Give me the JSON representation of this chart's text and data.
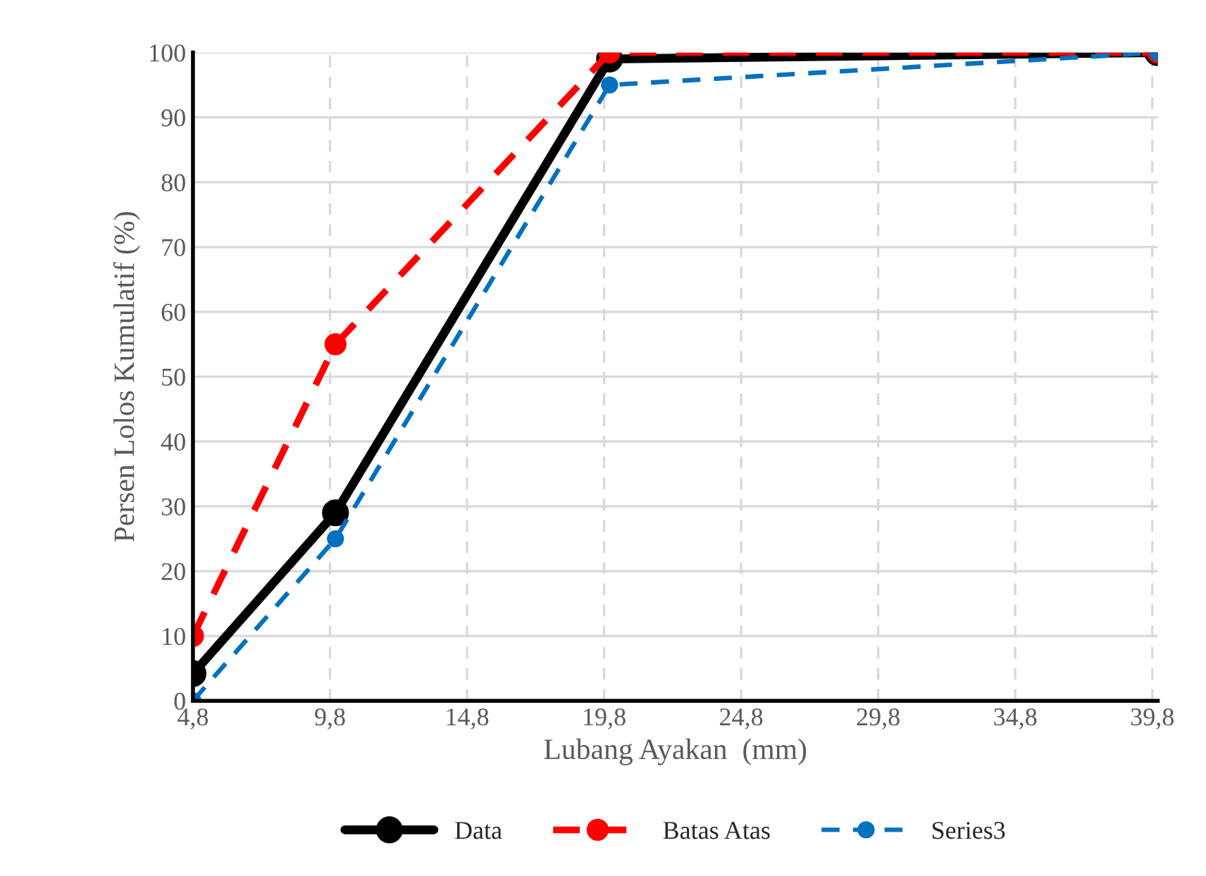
{
  "chart_data": {
    "type": "line",
    "xlabel": "Lubang Ayakan  (mm)",
    "ylabel": "Persen Lolos Kumulatif (%)",
    "x": [
      4.8,
      10,
      20,
      40
    ],
    "series": [
      {
        "name": "Data",
        "color": "#000000",
        "values": [
          4.2,
          29,
          99,
          100
        ],
        "line_style": "solid"
      },
      {
        "name": "Batas Atas",
        "color": "#ff0000",
        "values": [
          10,
          55,
          100,
          100
        ],
        "line_style": "dashed"
      },
      {
        "name": "Series3",
        "color": "#0070c0",
        "values": [
          0,
          25,
          95,
          100
        ],
        "line_style": "dashed"
      }
    ],
    "xlim": [
      4.8,
      40
    ],
    "xticks": [
      {
        "value": 4.8,
        "label": "4,8"
      },
      {
        "value": 9.8,
        "label": "9,8"
      },
      {
        "value": 14.8,
        "label": "14,8"
      },
      {
        "value": 19.8,
        "label": "19,8"
      },
      {
        "value": 24.8,
        "label": "24,8"
      },
      {
        "value": 29.8,
        "label": "29,8"
      },
      {
        "value": 34.8,
        "label": "34,8"
      },
      {
        "value": 39.8,
        "label": "39,8"
      }
    ],
    "ylim": [
      0,
      100
    ],
    "yticks": [
      0,
      10,
      20,
      30,
      40,
      50,
      60,
      70,
      80,
      90,
      100
    ],
    "grid": true,
    "legend": "bottom",
    "marker": "circle"
  }
}
